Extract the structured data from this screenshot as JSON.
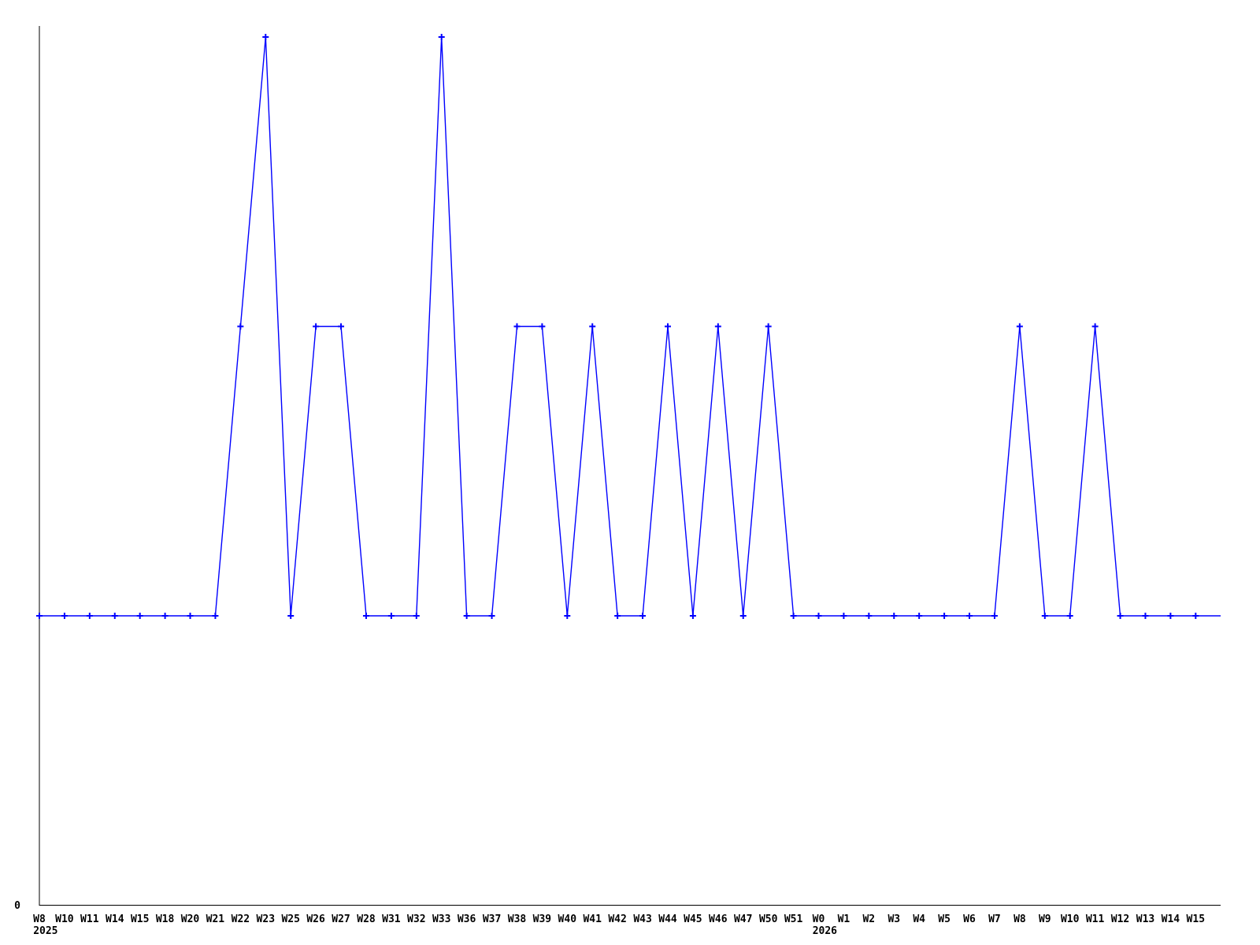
{
  "page": {
    "background_color": "#ffffff"
  },
  "chart_data": {
    "type": "line",
    "style": "linespoints",
    "title": "",
    "xlabel": "",
    "ylabel": "",
    "grid": false,
    "legend": null,
    "line_color": "#0000ff",
    "marker_color": "#0000ff",
    "axis_color": "#000000",
    "marker_shape": "plus",
    "ylim": [
      0,
      3
    ],
    "y_zero_label": "0",
    "x_tick_labels": [
      "W8",
      "W10",
      "W11",
      "W14",
      "W15",
      "W18",
      "W20",
      "W21",
      "W22",
      "W23",
      "W25",
      "W26",
      "W27",
      "W28",
      "W31",
      "W32",
      "W33",
      "W36",
      "W37",
      "W38",
      "W39",
      "W40",
      "W41",
      "W42",
      "W43",
      "W44",
      "W45",
      "W46",
      "W47",
      "W50",
      "W51",
      "W0",
      "W1",
      "W2",
      "W3",
      "W4",
      "W5",
      "W6",
      "W7",
      "W8",
      "W9",
      "W10",
      "W11",
      "W12",
      "W13",
      "W14",
      "W15"
    ],
    "year_markers": [
      {
        "index": 0,
        "label": "2025"
      },
      {
        "index": 31,
        "label": "2026"
      }
    ],
    "values": [
      1,
      1,
      1,
      1,
      1,
      1,
      1,
      1,
      2,
      3,
      1,
      2,
      2,
      1,
      1,
      1,
      3,
      1,
      1,
      2,
      2,
      1,
      2,
      1,
      1,
      2,
      1,
      2,
      1,
      2,
      1,
      1,
      1,
      1,
      1,
      1,
      1,
      1,
      1,
      2,
      1,
      1,
      2,
      1,
      1,
      1,
      1
    ],
    "line_extends_to_right_edge": true
  }
}
